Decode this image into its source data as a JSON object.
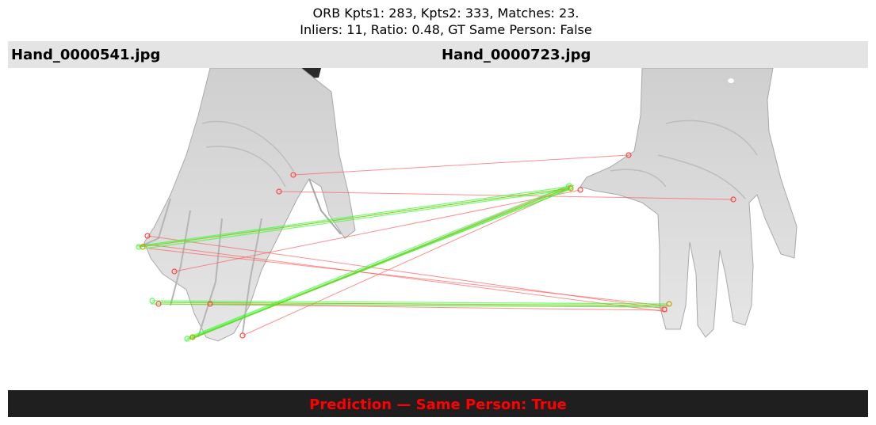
{
  "title": {
    "line1": "ORB Kpts1: 283, Kpts2: 333, Matches: 23.",
    "line2": "Inliers: 11, Ratio: 0.48, GT Same Person: False"
  },
  "images": {
    "left_filename": "Hand_0000541.jpg",
    "right_filename": "Hand_0000723.jpg"
  },
  "prediction": {
    "text": "Prediction — Same Person: True",
    "color": "#ff0000"
  },
  "colors": {
    "inlier_line": "#33ff33",
    "outlier_line": "#ff5555",
    "header_bg": "#e4e4e4",
    "footer_bg": "#1f1f1f"
  }
}
